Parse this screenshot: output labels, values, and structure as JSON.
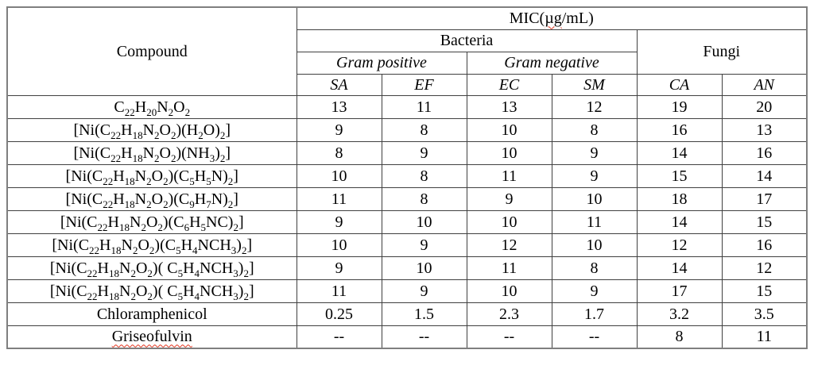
{
  "table": {
    "header": {
      "compound_label": "Compound",
      "mic_prefix": "MIC(",
      "mic_unit": "µg",
      "mic_suffix": "/mL)",
      "group_bacteria": "Bacteria",
      "group_fungi": "Fungi",
      "sub_gram_positive": "Gram positive",
      "sub_gram_negative": "Gram negative",
      "organism_columns": [
        "SA",
        "EF",
        "EC",
        "SM",
        "CA",
        "AN"
      ]
    },
    "rows": [
      {
        "compound": "C22H20N2O2",
        "misspelled": false,
        "values": [
          "13",
          "11",
          "13",
          "12",
          "19",
          "20"
        ]
      },
      {
        "compound": "[Ni(C22H18N2O2)(H2O)2]",
        "misspelled": false,
        "values": [
          "9",
          "8",
          "10",
          "8",
          "16",
          "13"
        ]
      },
      {
        "compound": "[Ni(C22H18N2O2)(NH3)2]",
        "misspelled": false,
        "values": [
          "8",
          "9",
          "10",
          "9",
          "14",
          "16"
        ]
      },
      {
        "compound": "[Ni(C22H18N2O2)(C5H5N)2]",
        "misspelled": false,
        "values": [
          "10",
          "8",
          "11",
          "9",
          "15",
          "14"
        ]
      },
      {
        "compound": "[Ni(C22H18N2O2)(C9H7N)2]",
        "misspelled": false,
        "values": [
          "11",
          "8",
          "9",
          "10",
          "18",
          "17"
        ]
      },
      {
        "compound": "[Ni(C22H18N2O2)(C6H5NC)2]",
        "misspelled": false,
        "values": [
          "9",
          "10",
          "10",
          "11",
          "14",
          "15"
        ]
      },
      {
        "compound": "[Ni(C22H18N2O2)(C5H4NCH3)2]",
        "misspelled": false,
        "values": [
          "10",
          "9",
          "12",
          "10",
          "12",
          "16"
        ]
      },
      {
        "compound": "[Ni(C22H18N2O2)( C5H4NCH3)2]",
        "misspelled": false,
        "values": [
          "9",
          "10",
          "11",
          "8",
          "14",
          "12"
        ]
      },
      {
        "compound": "[Ni(C22H18N2O2)( C5H4NCH3)2]",
        "misspelled": false,
        "values": [
          "11",
          "9",
          "10",
          "9",
          "17",
          "15"
        ]
      },
      {
        "compound": "Chloramphenicol",
        "misspelled": false,
        "values": [
          "0.25",
          "1.5",
          "2.3",
          "1.7",
          "3.2",
          "3.5"
        ]
      },
      {
        "compound": "Griseofulvin",
        "misspelled": true,
        "values": [
          "--",
          "--",
          "--",
          "--",
          "8",
          "11"
        ]
      }
    ]
  }
}
